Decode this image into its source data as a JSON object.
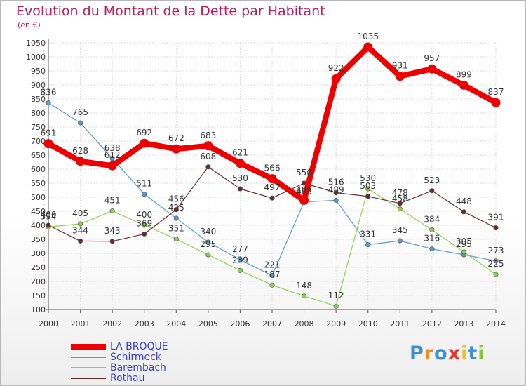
{
  "title": "Evolution du Montant de la Dette par Habitant",
  "unit": "(en €)",
  "logo": {
    "text": "Proxiti",
    "colors": [
      "#3b8fd6",
      "#f08c1e",
      "#3b8fd6",
      "#e8362e",
      "#f0c01e",
      "#3b8fd6",
      "#8cc43c"
    ]
  },
  "chart_data": {
    "type": "line",
    "x": [
      "2000",
      "2001",
      "2002",
      "2003",
      "2004",
      "2005",
      "2006",
      "2007",
      "2008",
      "2009",
      "2010",
      "2011",
      "2012",
      "2013",
      "2014"
    ],
    "ylim": [
      100,
      1050
    ],
    "yticks": [
      "100",
      "150",
      "200",
      "250",
      "300",
      "350",
      "400",
      "450",
      "500",
      "550",
      "600",
      "650",
      "700",
      "750",
      "800",
      "850",
      "900",
      "950",
      "1000",
      "1050"
    ],
    "grid": true,
    "series": [
      {
        "name": "LA BROQUE",
        "color": "#ee0000",
        "values": [
          691,
          628,
          612,
          692,
          672,
          683,
          621,
          566,
          489,
          922,
          1035,
          931,
          957,
          899,
          837
        ],
        "labels": [
          "691",
          "628",
          "612",
          "692",
          "672",
          "683",
          "621",
          "566",
          "489",
          "922",
          "1035",
          "931",
          "957",
          "899",
          "837"
        ]
      },
      {
        "name": "Schirmeck",
        "color": "#5a9bd4",
        "values": [
          836,
          765,
          638,
          511,
          425,
          340,
          277,
          221,
          483,
          489,
          331,
          345,
          316,
          295,
          273
        ],
        "labels": [
          "836",
          "765",
          "638",
          "511",
          "425",
          "340",
          "277",
          "221",
          "483",
          "489",
          "331",
          "345",
          "316",
          "295",
          "273"
        ]
      },
      {
        "name": "Barembach",
        "color": "#90d050",
        "values": [
          394,
          405,
          451,
          400,
          351,
          295,
          239,
          187,
          148,
          112,
          530,
          458,
          384,
          305,
          225
        ],
        "labels": [
          "394",
          "405",
          "451",
          "400",
          "351",
          "295",
          "239",
          "187",
          "148",
          "112",
          "530",
          "458",
          "384",
          "305",
          "225"
        ]
      },
      {
        "name": "Rothau",
        "color": "#6b2a2a",
        "values": [
          400,
          344,
          343,
          369,
          456,
          608,
          530,
          497,
          550,
          516,
          503,
          478,
          523,
          448,
          391
        ],
        "labels": [
          "400",
          "344",
          "343",
          "369",
          "456",
          "608",
          "530",
          "497",
          "550",
          "516",
          "503",
          "478",
          "523",
          "448",
          "391"
        ]
      }
    ]
  }
}
